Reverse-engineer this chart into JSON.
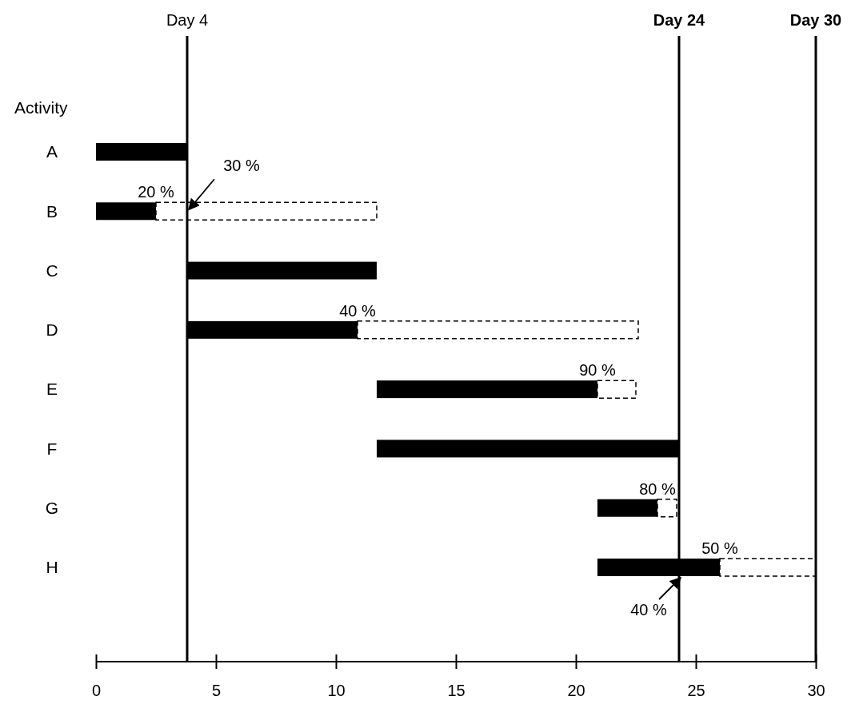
{
  "chart_data": {
    "type": "bar",
    "orientation": "horizontal",
    "ylabel": "Activity",
    "categories": [
      "A",
      "B",
      "C",
      "D",
      "E",
      "F",
      "G",
      "H"
    ],
    "series": [
      {
        "color": "#000000",
        "base": [
          0,
          0,
          3.8,
          3.8,
          11.7,
          11.7,
          20.9,
          20.9
        ],
        "values": [
          3.8,
          2.5,
          7.9,
          7.1,
          9.2,
          12.6,
          2.5,
          5.1
        ]
      },
      {
        "color": "#ffffff",
        "line_style": "dashed",
        "base": [
          null,
          2.5,
          null,
          10.9,
          20.9,
          null,
          23.4,
          26.0
        ],
        "values": [
          null,
          9.2,
          null,
          11.7,
          1.6,
          null,
          0.8,
          4.0
        ]
      }
    ],
    "xlim": [
      0,
      30
    ],
    "xticks": [
      0,
      5,
      10,
      15,
      20,
      25,
      30
    ],
    "ref_lines": [
      {
        "axis": "x",
        "value": 3.8,
        "label": "Day 4"
      },
      {
        "axis": "x",
        "value": 24.3,
        "label": "Day 24"
      },
      {
        "axis": "x",
        "value": 30,
        "label": "Day 30"
      }
    ],
    "annotations": [
      {
        "text": "20 %",
        "x": 2.5,
        "y": "B"
      },
      {
        "text": "30 %",
        "x": 3.8,
        "y": "B"
      },
      {
        "text": "40 %",
        "x": 10.9,
        "y": "D"
      },
      {
        "text": "90 %",
        "x": 20.9,
        "y": "E"
      },
      {
        "text": "80 %",
        "x": 23.4,
        "y": "G"
      },
      {
        "text": "50 %",
        "x": 26.0,
        "y": "H"
      },
      {
        "text": "40 %",
        "x": 24.3,
        "y": "H"
      }
    ]
  }
}
